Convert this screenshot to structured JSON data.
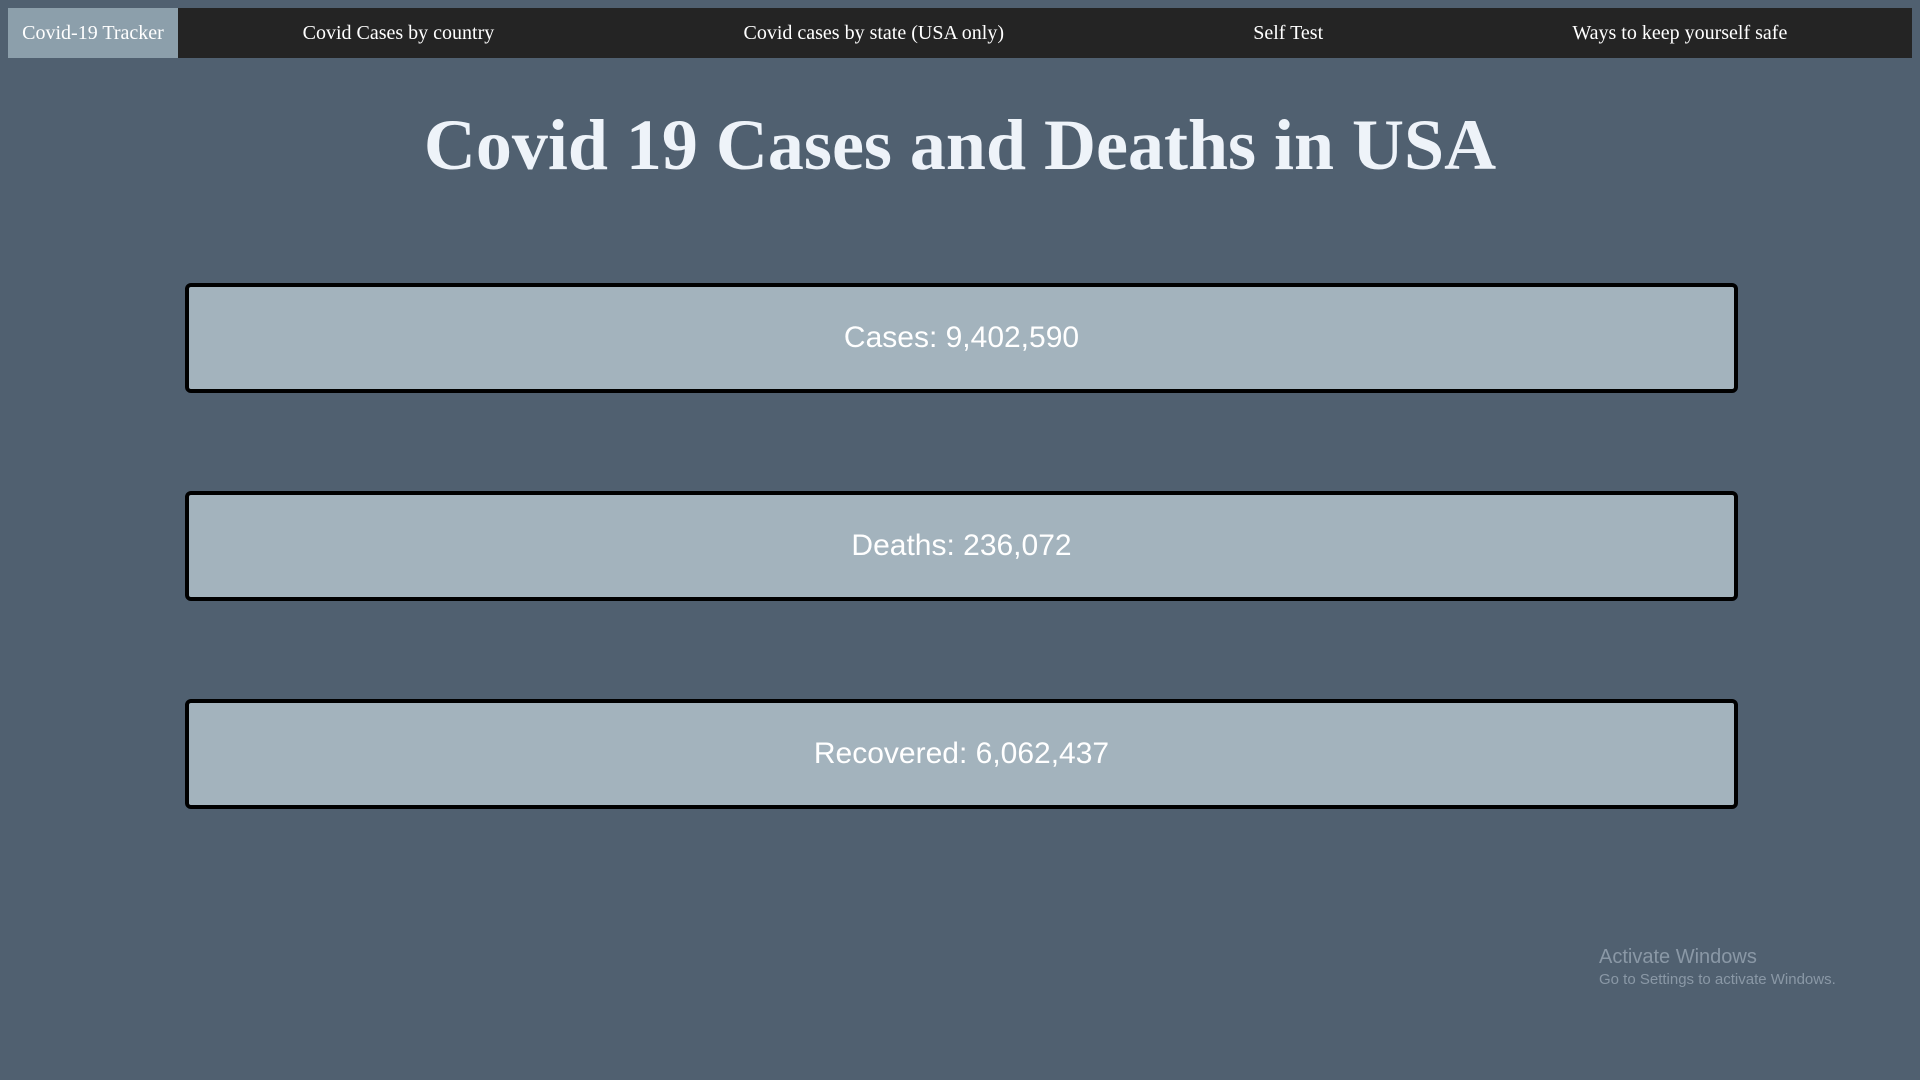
{
  "nav": {
    "brand": "Covid-19 Tracker",
    "links": [
      {
        "label": "Covid Cases by country"
      },
      {
        "label": "Covid cases by state (USA only)"
      },
      {
        "label": "Self Test"
      },
      {
        "label": "Ways to keep yourself safe"
      }
    ]
  },
  "page": {
    "title": "Covid 19 Cases and Deaths in USA"
  },
  "stats": {
    "cases": "Cases: 9,402,590",
    "deaths": "Deaths: 236,072",
    "recovered": "Recovered: 6,062,437"
  },
  "watermark": {
    "title": "Activate Windows",
    "subtitle": "Go to Settings to activate Windows."
  },
  "colors": {
    "background": "#506070",
    "navbar": "#242424",
    "brand_active": "#8c9fab",
    "card": "#a3b3bd",
    "card_border": "#000000"
  }
}
